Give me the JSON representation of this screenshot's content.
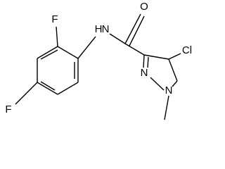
{
  "atoms": [
    {
      "label": "F"
    },
    {
      "label": "F"
    },
    {
      "label": "N"
    },
    {
      "label": "H"
    },
    {
      "label": "O"
    },
    {
      "label": "Cl"
    },
    {
      "label": "N"
    },
    {
      "label": "N"
    }
  ]
}
